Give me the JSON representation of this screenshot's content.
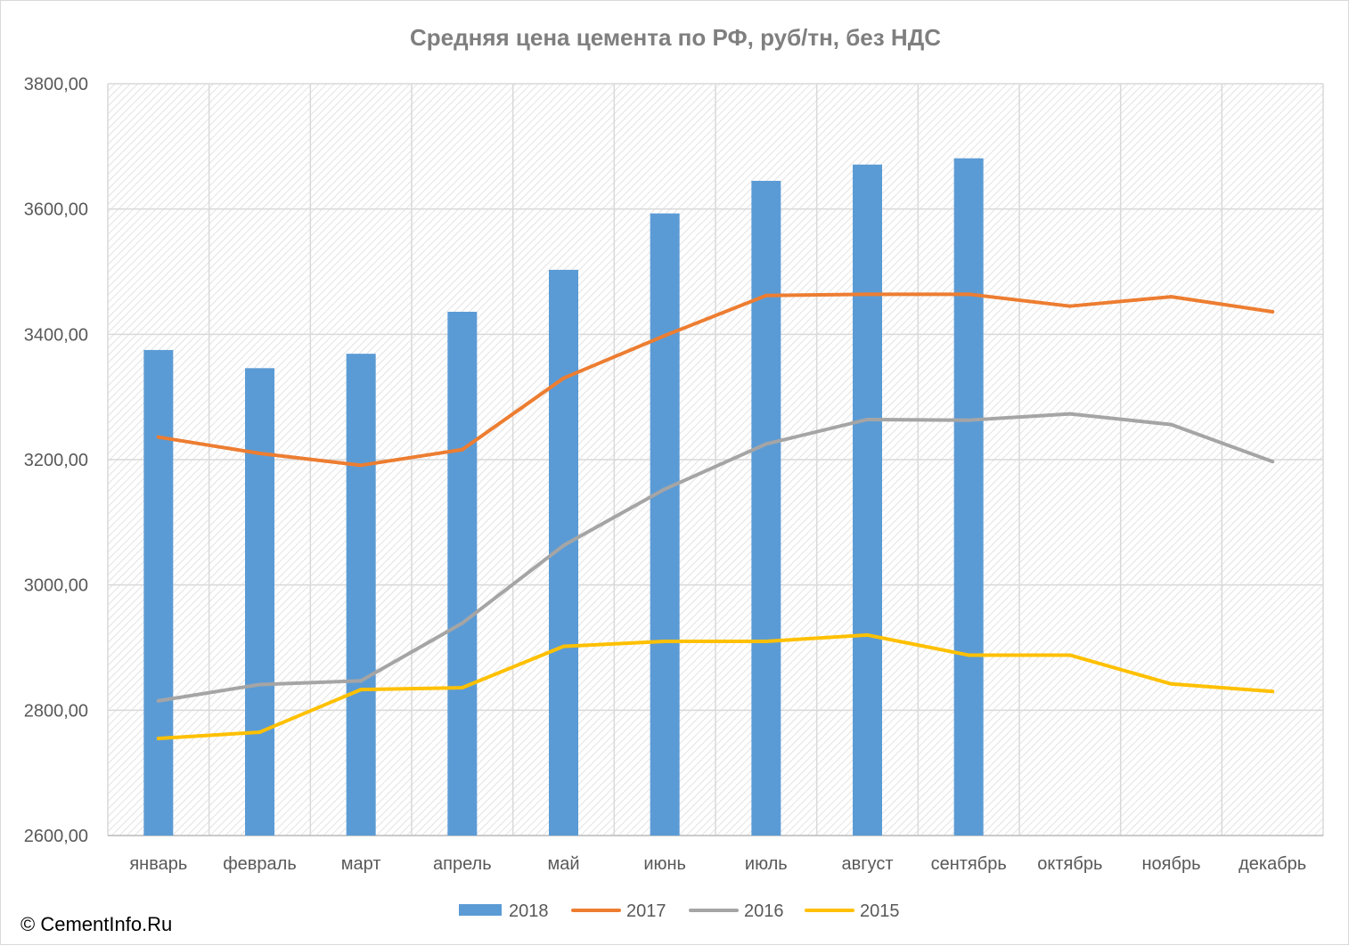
{
  "chart_data": {
    "type": "bar",
    "title": "Средняя цена цемента по РФ, руб/тн, без НДС",
    "xlabel": "",
    "ylabel": "",
    "ylim": [
      2600,
      3800
    ],
    "yticks": [
      "2600,00",
      "2800,00",
      "3000,00",
      "3200,00",
      "3400,00",
      "3600,00",
      "3800,00"
    ],
    "ytick_values": [
      2600,
      2800,
      3000,
      3200,
      3400,
      3600,
      3800
    ],
    "categories": [
      "январь",
      "февраль",
      "март",
      "апрель",
      "май",
      "июнь",
      "июль",
      "август",
      "сентябрь",
      "октябрь",
      "ноябрь",
      "декабрь"
    ],
    "grid": true,
    "legend_position": "bottom",
    "series": [
      {
        "name": "2018",
        "type": "bar",
        "color": "#5b9bd5",
        "values": [
          3375,
          3346,
          3369,
          3436,
          3503,
          3593,
          3645,
          3671,
          3681,
          null,
          null,
          null
        ]
      },
      {
        "name": "2017",
        "type": "line",
        "color": "#ed7d31",
        "values": [
          3236,
          3210,
          3191,
          3216,
          3330,
          3398,
          3462,
          3464,
          3464,
          3445,
          3460,
          3436
        ]
      },
      {
        "name": "2016",
        "type": "line",
        "color": "#a5a5a5",
        "values": [
          2815,
          2841,
          2847,
          2939,
          3063,
          3153,
          3225,
          3264,
          3263,
          3273,
          3256,
          3197
        ]
      },
      {
        "name": "2015",
        "type": "line",
        "color": "#ffc000",
        "values": [
          2755,
          2765,
          2833,
          2836,
          2902,
          2910,
          2910,
          2920,
          2888,
          2888,
          2842,
          2830
        ]
      }
    ]
  },
  "copyright": "© CementInfo.Ru"
}
